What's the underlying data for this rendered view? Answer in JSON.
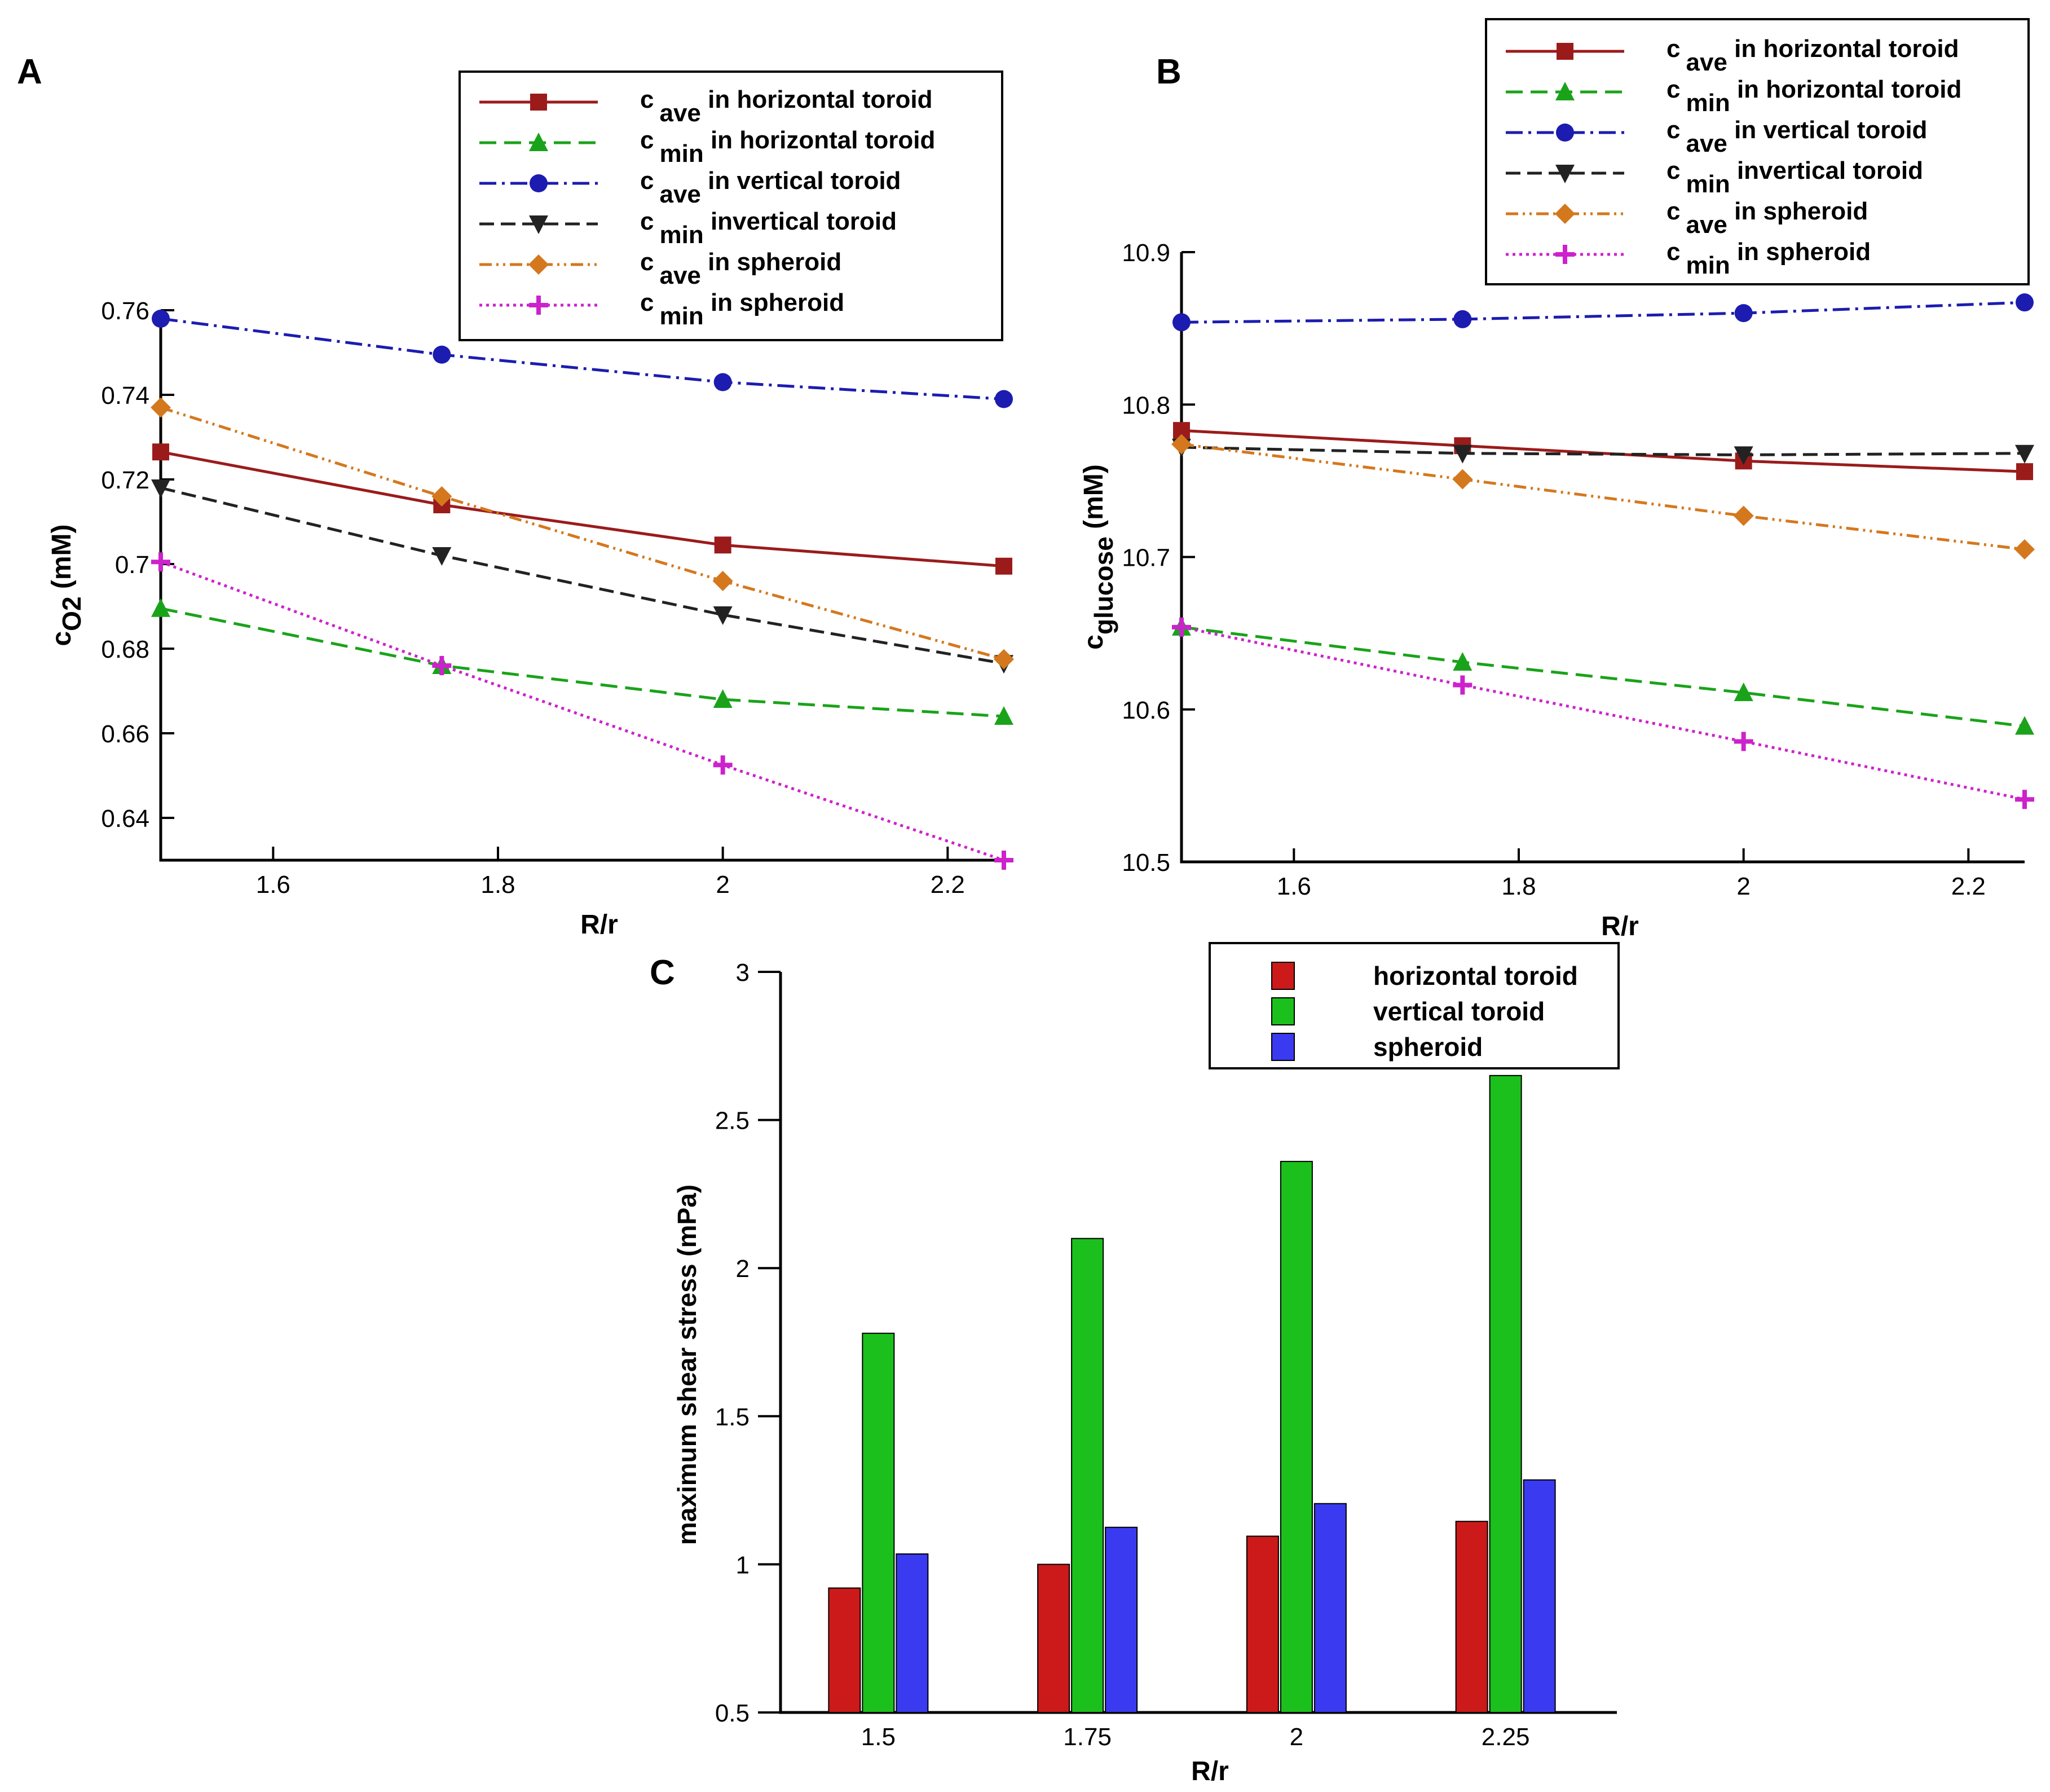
{
  "chart_data": [
    {
      "type": "line",
      "panel_label": "A",
      "xlabel": "R/r",
      "ylabel": {
        "base": "c",
        "sub": "O2",
        "suffix": " (mM)"
      },
      "xlim": [
        1.5,
        2.25
      ],
      "ylim": [
        0.63,
        0.76
      ],
      "xticks": [
        1.6,
        1.8,
        2,
        2.2
      ],
      "yticks": [
        0.64,
        0.66,
        0.68,
        0.7,
        0.72,
        0.74,
        0.76
      ],
      "x": [
        1.5,
        1.75,
        2,
        2.25
      ],
      "series": [
        {
          "prefix": "c",
          "sub": "ave",
          "suffix": " in horizontal toroid",
          "color": "#9b1b1b",
          "dash": "",
          "marker": "square",
          "values": [
            0.7265,
            0.714,
            0.7045,
            0.6995
          ]
        },
        {
          "prefix": "c",
          "sub": "min",
          "suffix": " in horizontal toroid",
          "color": "#1aa31a",
          "dash": "30,14",
          "marker": "triangle",
          "values": [
            0.6895,
            0.676,
            0.668,
            0.664
          ]
        },
        {
          "prefix": "c",
          "sub": "ave",
          "suffix": " in vertical toroid",
          "color": "#1c1cb0",
          "dash": "30,10,5,10",
          "marker": "circle",
          "values": [
            0.758,
            0.7495,
            0.743,
            0.739
          ]
        },
        {
          "prefix": "c",
          "sub": "min",
          "suffix": " invertical toroid",
          "color": "#222222",
          "dash": "26,12",
          "marker": "tri-down",
          "values": [
            0.718,
            0.702,
            0.688,
            0.6765
          ]
        },
        {
          "prefix": "c",
          "sub": "ave",
          "suffix": " in spheroid",
          "color": "#d4781e",
          "dash": "22,8,4,8,4,8",
          "marker": "diamond",
          "values": [
            0.737,
            0.716,
            0.696,
            0.6775
          ]
        },
        {
          "prefix": "c",
          "sub": "min",
          "suffix": " in spheroid",
          "color": "#cc22cc",
          "dash": "5,7",
          "marker": "plus",
          "values": [
            0.7005,
            0.676,
            0.6525,
            0.63
          ]
        }
      ]
    },
    {
      "type": "line",
      "panel_label": "B",
      "xlabel": "R/r",
      "ylabel": {
        "base": "c",
        "sub": "glucose",
        "suffix": " (mM)"
      },
      "xlim": [
        1.5,
        2.25
      ],
      "ylim": [
        10.5,
        10.9
      ],
      "xticks": [
        1.6,
        1.8,
        2,
        2.2
      ],
      "yticks": [
        10.5,
        10.6,
        10.7,
        10.8,
        10.9
      ],
      "x": [
        1.5,
        1.75,
        2,
        2.25
      ],
      "series": [
        {
          "prefix": "c",
          "sub": "ave",
          "suffix": " in horizontal toroid",
          "color": "#9b1b1b",
          "dash": "",
          "marker": "square",
          "values": [
            10.783,
            10.773,
            10.763,
            10.756
          ]
        },
        {
          "prefix": "c",
          "sub": "min",
          "suffix": " in horizontal toroid",
          "color": "#1aa31a",
          "dash": "30,14",
          "marker": "triangle",
          "values": [
            10.654,
            10.631,
            10.611,
            10.589
          ]
        },
        {
          "prefix": "c",
          "sub": "ave",
          "suffix": " in vertical toroid",
          "color": "#1c1cb0",
          "dash": "30,10,5,10",
          "marker": "circle",
          "values": [
            10.854,
            10.856,
            10.86,
            10.867
          ]
        },
        {
          "prefix": "c",
          "sub": "min",
          "suffix": " invertical toroid",
          "color": "#222222",
          "dash": "26,12",
          "marker": "tri-down",
          "values": [
            10.772,
            10.768,
            10.767,
            10.768
          ]
        },
        {
          "prefix": "c",
          "sub": "ave",
          "suffix": " in spheroid",
          "color": "#d4781e",
          "dash": "22,8,4,8,4,8",
          "marker": "diamond",
          "values": [
            10.774,
            10.751,
            10.727,
            10.705
          ]
        },
        {
          "prefix": "c",
          "sub": "min",
          "suffix": " in spheroid",
          "color": "#cc22cc",
          "dash": "5,7",
          "marker": "plus",
          "values": [
            10.654,
            10.616,
            10.579,
            10.541
          ]
        }
      ]
    },
    {
      "type": "bar",
      "panel_label": "C",
      "xlabel": "R/r",
      "ylabel": "maximum shear stress (mPa)",
      "ylim": [
        0.5,
        3
      ],
      "yticks": [
        0.5,
        1,
        1.5,
        2,
        2.5,
        3
      ],
      "categories": [
        "1.5",
        "1.75",
        "2",
        "2.25"
      ],
      "series": [
        {
          "name": "horizontal toroid",
          "color": "#cc1a1a",
          "values": [
            0.92,
            1.0,
            1.095,
            1.145
          ]
        },
        {
          "name": "vertical toroid",
          "color": "#1cc01c",
          "values": [
            1.78,
            2.1,
            2.36,
            2.65
          ]
        },
        {
          "name": "spheroid",
          "color": "#3a3af0",
          "values": [
            1.035,
            1.125,
            1.205,
            1.285
          ]
        }
      ]
    }
  ]
}
